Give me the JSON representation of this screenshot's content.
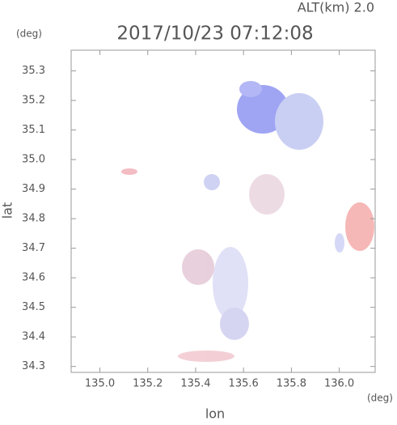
{
  "chart_data": {
    "type": "radar-map",
    "title": "2017/10/23 07:12:08",
    "annotation": "ALT(km) 2.0",
    "ylabel_unit": "(deg)",
    "xlabel_unit": "(deg)",
    "xlabel": "lon",
    "ylabel": "lat",
    "xlim": [
      134.88,
      136.15
    ],
    "ylim": [
      34.28,
      35.37
    ],
    "xticks": [
      {
        "value": 135.0,
        "label": "135.0"
      },
      {
        "value": 135.2,
        "label": "135.2"
      },
      {
        "value": 135.4,
        "label": "135.4"
      },
      {
        "value": 135.6,
        "label": "135.6"
      },
      {
        "value": 135.8,
        "label": "135.8"
      },
      {
        "value": 136.0,
        "label": "136.0"
      }
    ],
    "yticks": [
      34.3,
      34.4,
      34.5,
      34.6,
      34.7,
      34.8,
      34.9,
      {
        "value": 35.0,
        "label": "35.0"
      },
      35.1,
      35.2,
      35.3
    ]
  }
}
